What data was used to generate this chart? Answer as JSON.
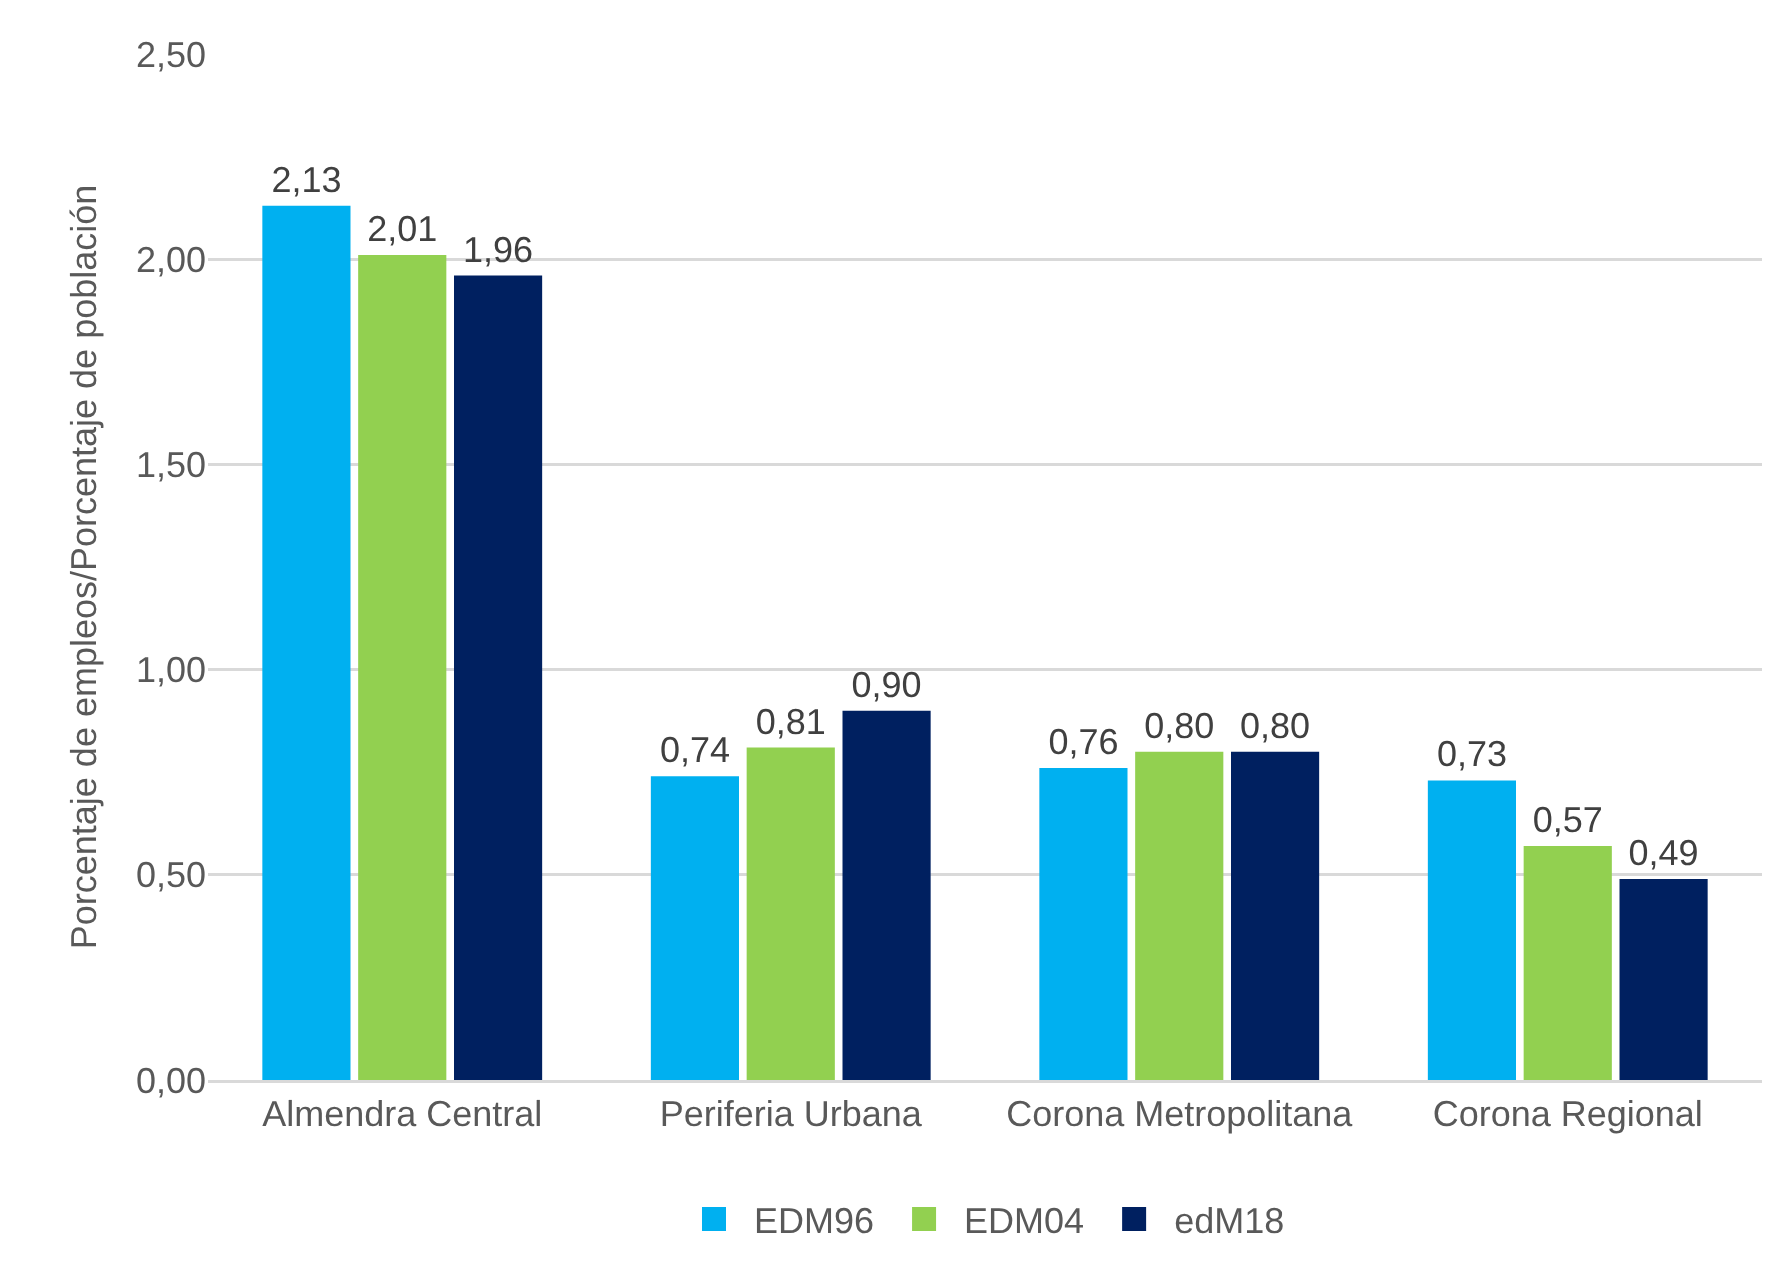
{
  "chart_data": {
    "type": "bar",
    "ylabel": "Porcentaje de empleos/Porcentaje de población",
    "categories": [
      "Almendra Central",
      "Periferia Urbana",
      "Corona Metropolitana",
      "Corona Regional"
    ],
    "series": [
      {
        "name": "EDM96",
        "color": "#00b0f0",
        "values": [
          2.13,
          0.74,
          0.76,
          0.73
        ],
        "value_labels": [
          "2,13",
          "0,74",
          "0,76",
          "0,73"
        ]
      },
      {
        "name": "EDM04",
        "color": "#92d050",
        "values": [
          2.01,
          0.81,
          0.8,
          0.57
        ],
        "value_labels": [
          "2,01",
          "0,81",
          "0,80",
          "0,57"
        ]
      },
      {
        "name": "edM18",
        "color": "#002060",
        "values": [
          1.96,
          0.9,
          0.8,
          0.49
        ],
        "value_labels": [
          "1,96",
          "0,90",
          "0,80",
          "0,49"
        ]
      }
    ],
    "ylim": [
      0,
      2.5
    ],
    "yticks": [
      {
        "value": 0,
        "label": "0,00"
      },
      {
        "value": 0.5,
        "label": "0,50"
      },
      {
        "value": 1,
        "label": "1,00"
      },
      {
        "value": 1.5,
        "label": "1,50"
      },
      {
        "value": 2,
        "label": "2,00"
      },
      {
        "value": 2.5,
        "label": "2,50"
      }
    ],
    "grid": "y",
    "legend": "bottom"
  }
}
